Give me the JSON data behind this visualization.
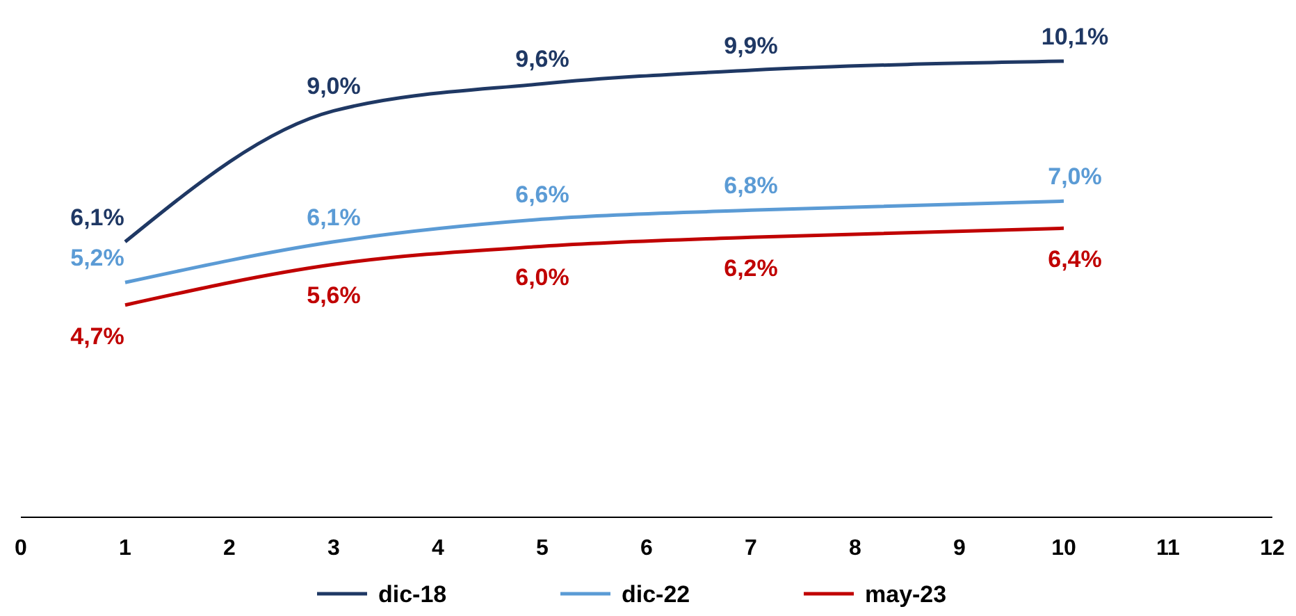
{
  "chart_data": {
    "type": "line",
    "x": [
      1,
      3,
      5,
      7,
      10
    ],
    "series": [
      {
        "name": "dic-18",
        "color": "#1f3864",
        "values": [
          6.1,
          9.0,
          9.6,
          9.9,
          10.1
        ],
        "value_labels": [
          "6,1%",
          "9,0%",
          "9,6%",
          "9,9%",
          "10,1%"
        ]
      },
      {
        "name": "dic-22",
        "color": "#5b9bd5",
        "values": [
          5.2,
          6.1,
          6.6,
          6.8,
          7.0
        ],
        "value_labels": [
          "5,2%",
          "6,1%",
          "6,6%",
          "6,8%",
          "7,0%"
        ]
      },
      {
        "name": "may-23",
        "color": "#c00000",
        "values": [
          4.7,
          5.6,
          6.0,
          6.2,
          6.4
        ],
        "value_labels": [
          "4,7%",
          "5,6%",
          "6,0%",
          "6,2%",
          "6,4%"
        ]
      }
    ],
    "xlim": [
      0,
      12
    ],
    "xticks": [
      0,
      1,
      2,
      3,
      4,
      5,
      6,
      7,
      8,
      9,
      10,
      11,
      12
    ],
    "tick_labels": "x",
    "legend": "bottom",
    "marker": "none",
    "line_style": "solid"
  }
}
